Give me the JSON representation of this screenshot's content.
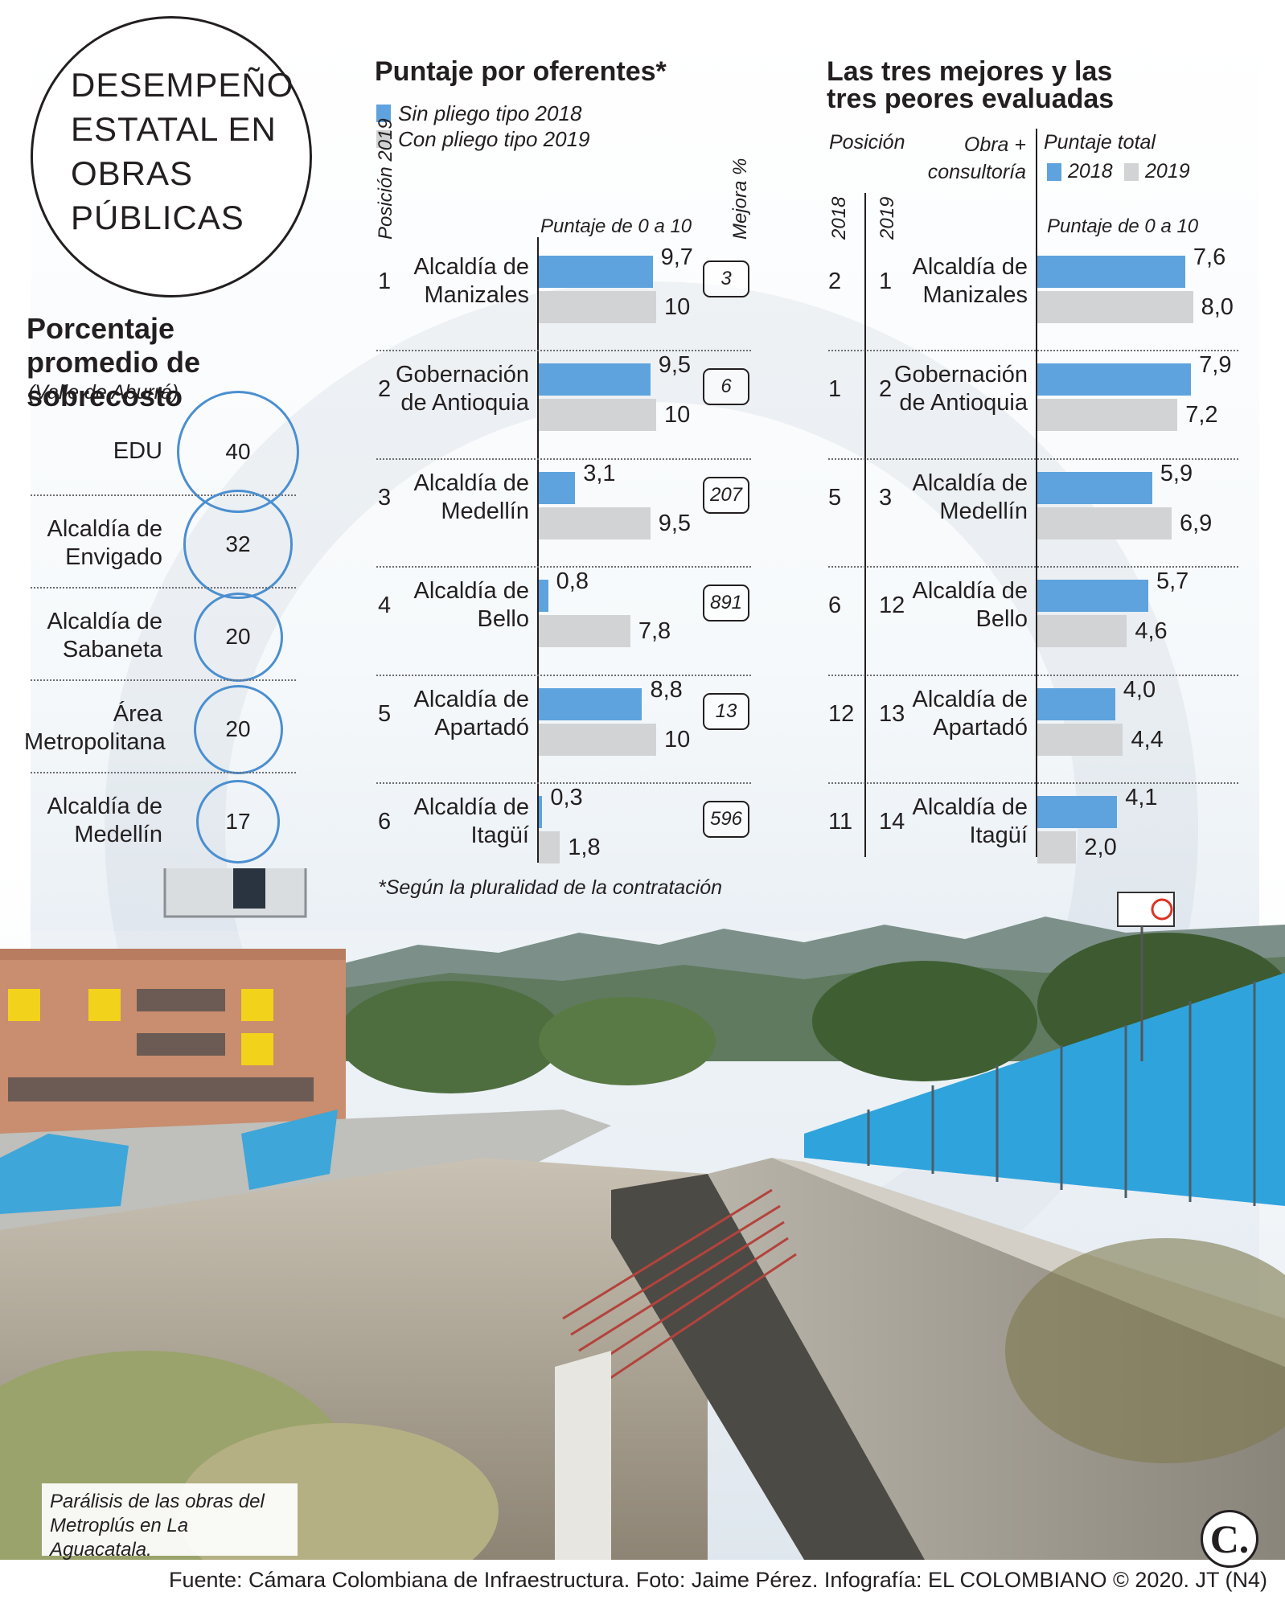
{
  "title": "DESEMPEÑO ESTATAL EN OBRAS PÚBLICAS",
  "colors": {
    "bar_2018": "#5ea3dd",
    "bar_2019": "#d1d3d4",
    "bubble": "#4b8fd0",
    "ink": "#231f20"
  },
  "overcost": {
    "heading": "Porcentaje promedio de sobrecosto",
    "subheading": "(Valle de Aburrá)",
    "items": [
      {
        "label": "EDU",
        "value": 40
      },
      {
        "label": "Alcaldía de Envigado",
        "value": 32
      },
      {
        "label": "Alcaldía de Sabaneta",
        "value": 20
      },
      {
        "label": "Área Metropolitana",
        "value": 20
      },
      {
        "label": "Alcaldía de Medellín",
        "value": 17
      }
    ]
  },
  "chart_data": [
    {
      "type": "bar",
      "title": "Puntaje por oferentes*",
      "legend": [
        "Sin pliego tipo 2018",
        "Con pliego tipo 2019"
      ],
      "position_header": "Posición 2019",
      "axis_label": "Puntaje de 0 a 10",
      "improvement_header": "Mejora %",
      "xlim": [
        0,
        10
      ],
      "footnote": "*Según la pluralidad de la contratación",
      "rows": [
        {
          "position": "1",
          "entity": "Alcaldía de Manizales",
          "v2018": 9.7,
          "v2018_label": "9,7",
          "v2019": 10,
          "v2019_label": "10",
          "improvement": "3"
        },
        {
          "position": "2",
          "entity": "Gobernación de Antioquia",
          "v2018": 9.5,
          "v2018_label": "9,5",
          "v2019": 10,
          "v2019_label": "10",
          "improvement": "6"
        },
        {
          "position": "3",
          "entity": "Alcaldía de Medellín",
          "v2018": 3.1,
          "v2018_label": "3,1",
          "v2019": 9.5,
          "v2019_label": "9,5",
          "improvement": "207"
        },
        {
          "position": "4",
          "entity": "Alcaldía de Bello",
          "v2018": 0.8,
          "v2018_label": "0,8",
          "v2019": 7.8,
          "v2019_label": "7,8",
          "improvement": "891"
        },
        {
          "position": "5",
          "entity": "Alcaldía de Apartadó",
          "v2018": 8.8,
          "v2018_label": "8,8",
          "v2019": 10,
          "v2019_label": "10",
          "improvement": "13"
        },
        {
          "position": "6",
          "entity": "Alcaldía de Itagüí",
          "v2018": 0.3,
          "v2018_label": "0,3",
          "v2019": 1.8,
          "v2019_label": "1,8",
          "improvement": "596"
        }
      ]
    },
    {
      "type": "bar",
      "title": "Las tres mejores y las tres peores evaluadas",
      "position_header": "Posición",
      "work_header": "Obra + consultoría",
      "score_header": "Puntaje total",
      "legend": [
        "2018",
        "2019"
      ],
      "year_headers": [
        "2018",
        "2019"
      ],
      "axis_label": "Puntaje de 0 a 10",
      "xlim": [
        0,
        10
      ],
      "rows": [
        {
          "pos2018": "2",
          "pos2019": "1",
          "entity": "Alcaldía de Manizales",
          "v2018": 7.6,
          "v2018_label": "7,6",
          "v2019": 8.0,
          "v2019_label": "8,0"
        },
        {
          "pos2018": "1",
          "pos2019": "2",
          "entity": "Gobernación de Antioquia",
          "v2018": 7.9,
          "v2018_label": "7,9",
          "v2019": 7.2,
          "v2019_label": "7,2"
        },
        {
          "pos2018": "5",
          "pos2019": "3",
          "entity": "Alcaldía de Medellín",
          "v2018": 5.9,
          "v2018_label": "5,9",
          "v2019": 6.9,
          "v2019_label": "6,9"
        },
        {
          "pos2018": "6",
          "pos2019": "12",
          "entity": "Alcaldía de Bello",
          "v2018": 5.7,
          "v2018_label": "5,7",
          "v2019": 4.6,
          "v2019_label": "4,6"
        },
        {
          "pos2018": "12",
          "pos2019": "13",
          "entity": "Alcaldía de Apartadó",
          "v2018": 4.0,
          "v2018_label": "4,0",
          "v2019": 4.4,
          "v2019_label": "4,4"
        },
        {
          "pos2018": "11",
          "pos2019": "14",
          "entity": "Alcaldía de Itagüí",
          "v2018": 4.1,
          "v2018_label": "4,1",
          "v2019": 2.0,
          "v2019_label": "2,0"
        }
      ]
    }
  ],
  "photo_caption": "Parálisis de las obras del Metroplús en La Aguacatala.",
  "credits": "Fuente: Cámara Colombiana de Infraestructura. Foto: Jaime Pérez. Infografía: EL COLOMBIANO © 2020. JT (N4)",
  "logo_letter": "C."
}
